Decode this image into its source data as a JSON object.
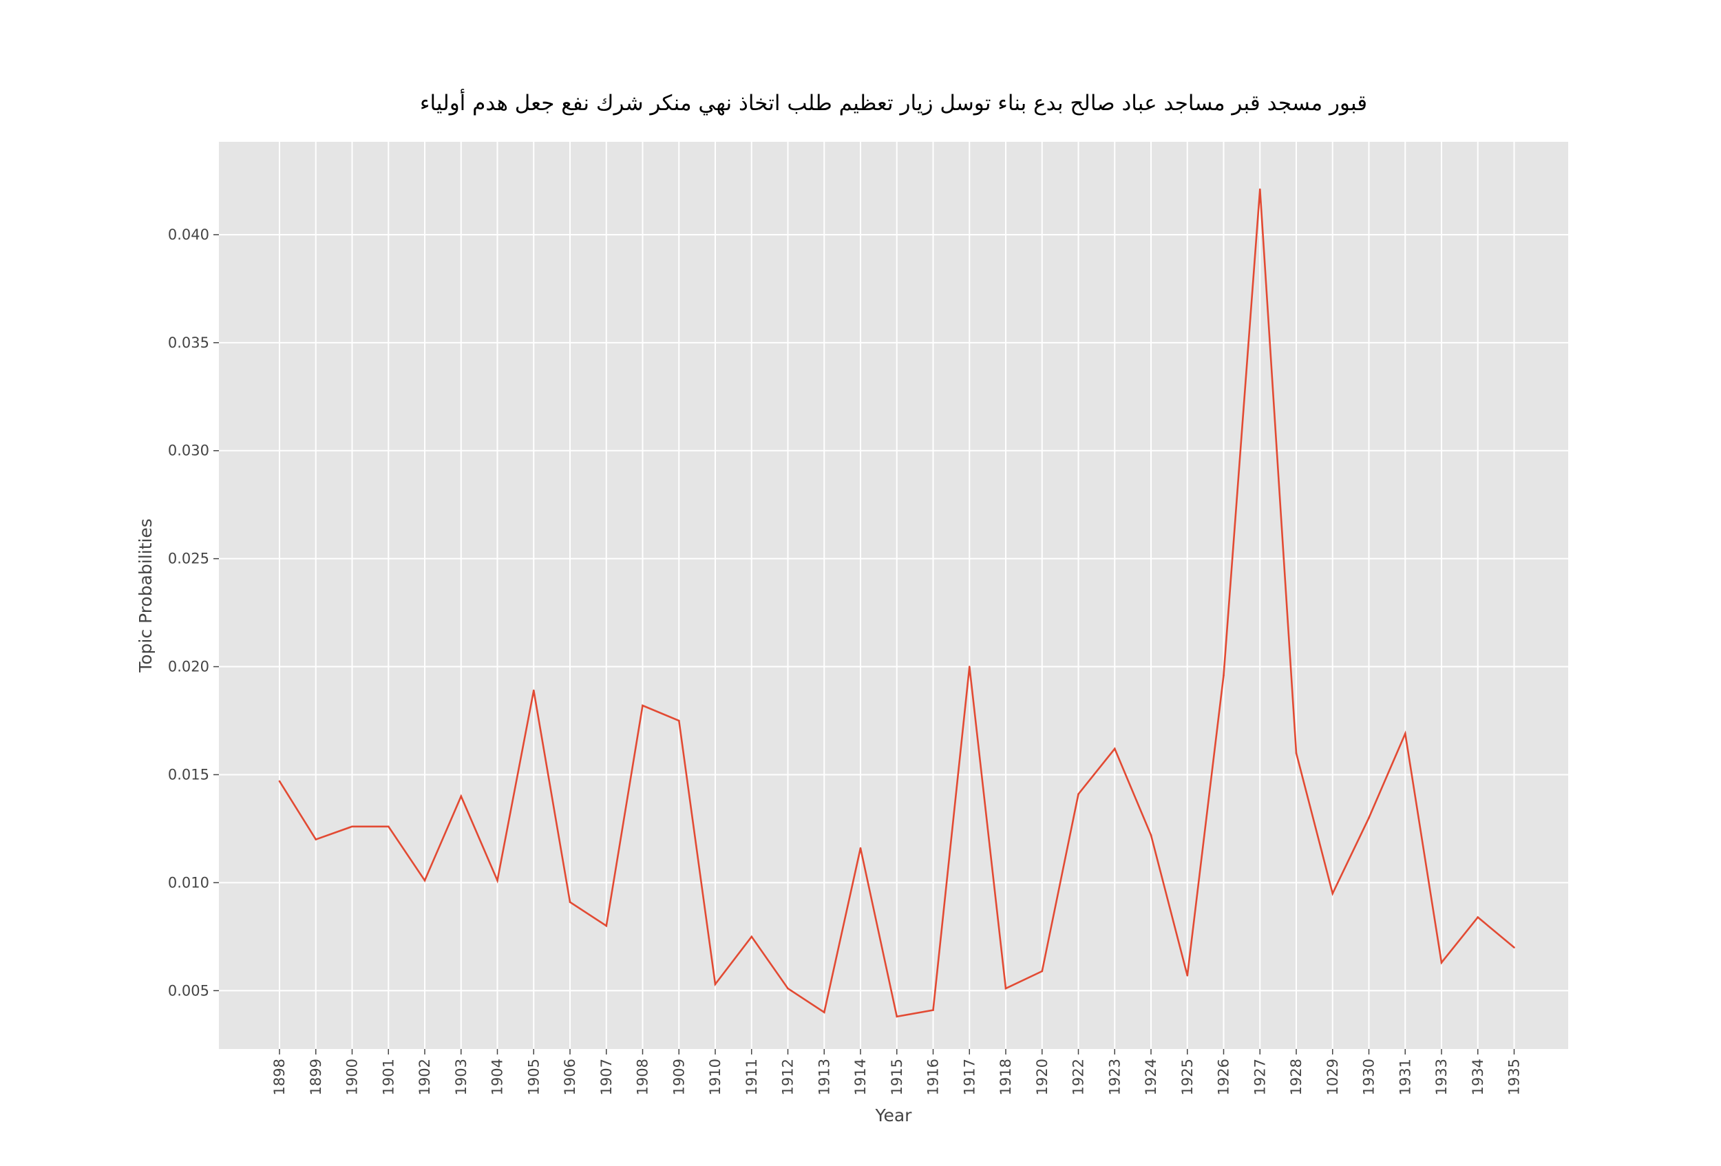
{
  "chart_data": {
    "type": "line",
    "title": "قبور مسجد قبر مساجد عباد صالح بدع بناء توسل زيار تعظيم طلب اتخاذ نهي منكر شرك نفع جعل هدم أولياء",
    "xlabel": "Year",
    "ylabel": "Topic Probabilities",
    "categories": [
      "1898",
      "1899",
      "1900",
      "1901",
      "1902",
      "1903",
      "1904",
      "1905",
      "1906",
      "1907",
      "1908",
      "1909",
      "1910",
      "1911",
      "1912",
      "1913",
      "1914",
      "1915",
      "1916",
      "1917",
      "1918",
      "1920",
      "1922",
      "1923",
      "1924",
      "1925",
      "1926",
      "1927",
      "1928",
      "1029",
      "1930",
      "1931",
      "1933",
      "1934",
      "1935"
    ],
    "series": [
      {
        "values": [
          0.0147,
          0.012,
          0.0126,
          0.0126,
          0.0101,
          0.014,
          0.0101,
          0.0189,
          0.0091,
          0.008,
          0.0182,
          0.0175,
          0.0053,
          0.0075,
          0.0051,
          0.004,
          0.0116,
          0.0038,
          0.0041,
          0.02,
          0.0051,
          0.0059,
          0.0141,
          0.0162,
          0.0122,
          0.0057,
          0.0196,
          0.0421,
          0.016,
          0.0095,
          0.013,
          0.0169,
          0.0063,
          0.0084,
          0.007
        ]
      }
    ],
    "yticks": [
      "0.005",
      "0.010",
      "0.015",
      "0.020",
      "0.025",
      "0.030",
      "0.035",
      "0.040"
    ],
    "ylim": [
      0.0023,
      0.0443
    ],
    "grid": true,
    "colors": {
      "line": "#e24a33",
      "plot_background": "#e5e5e5",
      "grid": "#ffffff",
      "tick_text": "#444444"
    }
  }
}
